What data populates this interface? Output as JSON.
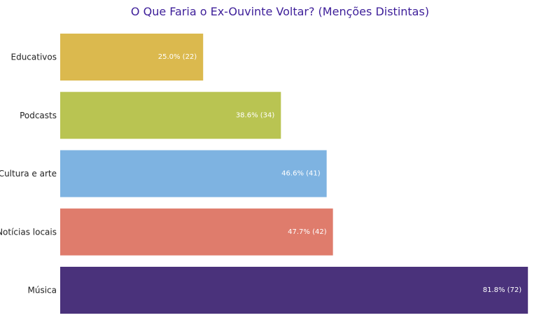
{
  "chart_data": {
    "type": "bar",
    "orientation": "horizontal",
    "title": "O Que Faria o Ex-Ouvinte Voltar? (Menções Distintas)",
    "xlabel": "",
    "ylabel": "",
    "grid": false,
    "legend": "none",
    "xlim": [
      0,
      83
    ],
    "categories": [
      "Educativos",
      "Podcasts",
      "Cultura e arte",
      "Notícias locais",
      "Música"
    ],
    "values": [
      25.0,
      38.6,
      46.6,
      47.7,
      81.8
    ],
    "counts": [
      22,
      34,
      41,
      42,
      72
    ],
    "data_labels": [
      "25.0% (22)",
      "38.6% (34)",
      "46.6% (41)",
      "47.7% (42)",
      "81.8% (72)"
    ],
    "colors": [
      "#dbb94e",
      "#b9c452",
      "#7eb3e1",
      "#df7c6c",
      "#4a327b"
    ]
  },
  "colors": {
    "title": "#3d1e99"
  }
}
